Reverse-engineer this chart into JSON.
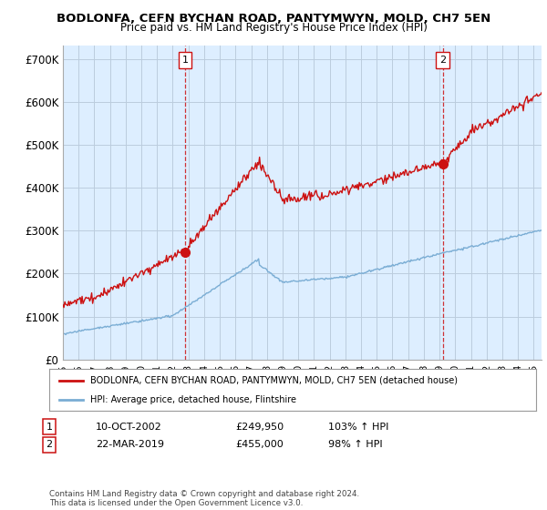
{
  "title": "BODLONFA, CEFN BYCHAN ROAD, PANTYMWYN, MOLD, CH7 5EN",
  "subtitle": "Price paid vs. HM Land Registry's House Price Index (HPI)",
  "ylabel_ticks": [
    "£0",
    "£100K",
    "£200K",
    "£300K",
    "£400K",
    "£500K",
    "£600K",
    "£700K"
  ],
  "ytick_values": [
    0,
    100000,
    200000,
    300000,
    400000,
    500000,
    600000,
    700000
  ],
  "ylim": [
    0,
    730000
  ],
  "xlim_start": 1995.0,
  "xlim_end": 2025.5,
  "hpi_color": "#7aadd4",
  "price_color": "#cc1111",
  "chart_bg": "#ddeeff",
  "marker1_x": 2002.78,
  "marker1_y": 249950,
  "marker2_x": 2019.22,
  "marker2_y": 455000,
  "legend_line1": "BODLONFA, CEFN BYCHAN ROAD, PANTYMWYN, MOLD, CH7 5EN (detached house)",
  "legend_line2": "HPI: Average price, detached house, Flintshire",
  "table_row1": [
    "1",
    "10-OCT-2002",
    "£249,950",
    "103% ↑ HPI"
  ],
  "table_row2": [
    "2",
    "22-MAR-2019",
    "£455,000",
    "98% ↑ HPI"
  ],
  "footer": "Contains HM Land Registry data © Crown copyright and database right 2024.\nThis data is licensed under the Open Government Licence v3.0.",
  "background_color": "#ffffff",
  "grid_color": "#bbccdd"
}
